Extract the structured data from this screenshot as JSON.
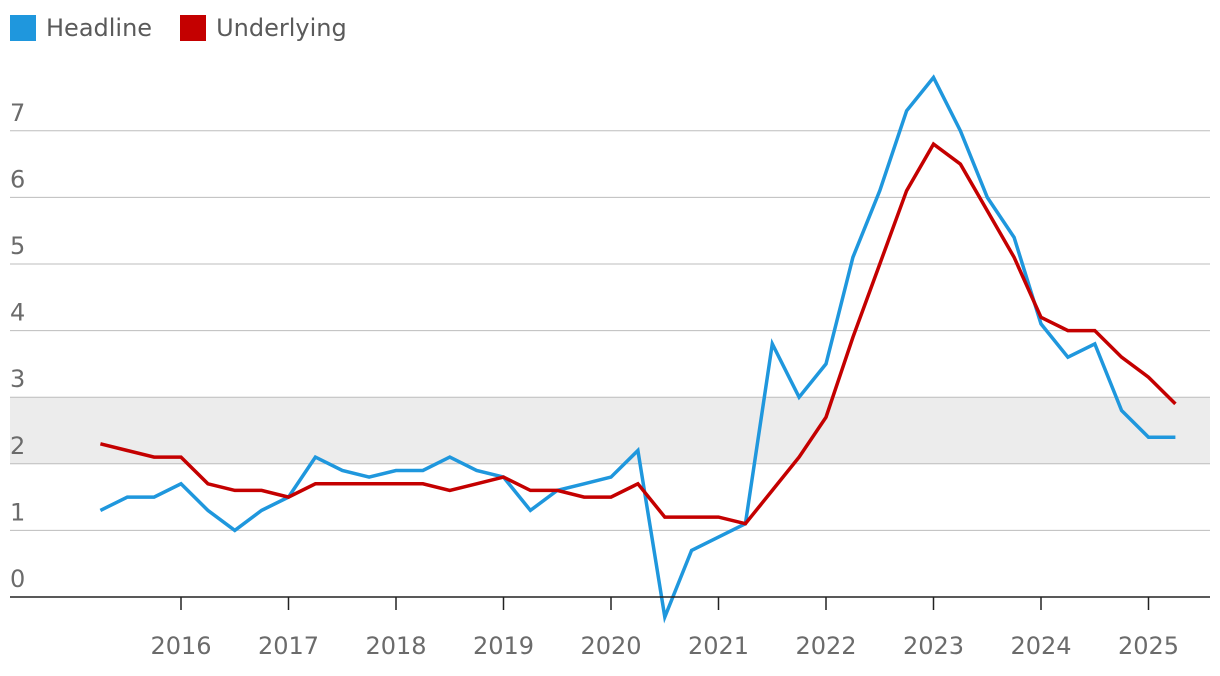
{
  "chart_data": {
    "type": "line",
    "legend_position": "top-left",
    "grid": true,
    "ylim": [
      0,
      8
    ],
    "yticks": [
      "0",
      "1",
      "2",
      "3",
      "4",
      "5",
      "6",
      "7"
    ],
    "xticks": [
      "2016",
      "2017",
      "2018",
      "2019",
      "2020",
      "2021",
      "2022",
      "2023",
      "2024",
      "2025"
    ],
    "target_band": [
      2,
      3
    ],
    "band_color": "#ececec",
    "x_start_year": 2015.25,
    "x_step_years": 0.25,
    "series": [
      {
        "name": "Headline",
        "color": "#1f97dd",
        "values": [
          1.3,
          1.5,
          1.5,
          1.7,
          1.3,
          1.0,
          1.3,
          1.5,
          2.1,
          1.9,
          1.8,
          1.9,
          1.9,
          2.1,
          1.9,
          1.8,
          1.3,
          1.6,
          1.7,
          1.8,
          2.2,
          -0.3,
          0.7,
          0.9,
          1.1,
          3.8,
          3.0,
          3.5,
          5.1,
          6.1,
          7.3,
          7.8,
          7.0,
          6.0,
          5.4,
          4.1,
          3.6,
          3.8,
          2.8,
          2.4,
          2.4
        ]
      },
      {
        "name": "Underlying",
        "color": "#c40000",
        "values": [
          2.3,
          2.2,
          2.1,
          2.1,
          1.7,
          1.6,
          1.6,
          1.5,
          1.7,
          1.7,
          1.7,
          1.7,
          1.7,
          1.6,
          1.7,
          1.8,
          1.6,
          1.6,
          1.5,
          1.5,
          1.7,
          1.2,
          1.2,
          1.2,
          1.1,
          1.6,
          2.1,
          2.7,
          3.9,
          5.0,
          6.1,
          6.8,
          6.5,
          5.8,
          5.1,
          4.2,
          4.0,
          4.0,
          3.6,
          3.3,
          2.9
        ]
      }
    ]
  }
}
